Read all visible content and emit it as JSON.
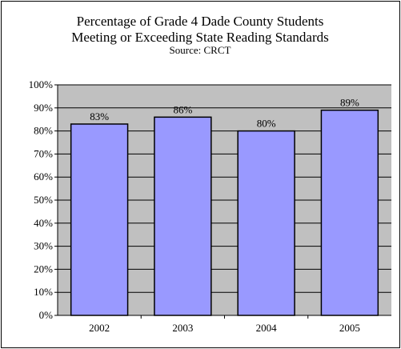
{
  "chart_data": {
    "type": "bar",
    "title": [
      "Percentage of Grade 4 Dade County Students",
      "Meeting or Exceeding State Reading Standards"
    ],
    "subtitle": "Source: CRCT",
    "categories": [
      "2002",
      "2003",
      "2004",
      "2005"
    ],
    "values": [
      83,
      86,
      80,
      89
    ],
    "data_labels": [
      "83%",
      "86%",
      "80%",
      "89%"
    ],
    "y_ticks": [
      "0%",
      "10%",
      "20%",
      "30%",
      "40%",
      "50%",
      "60%",
      "70%",
      "80%",
      "90%",
      "100%"
    ],
    "ylim": [
      0,
      100
    ],
    "xlabel": "",
    "ylabel": "",
    "grid": true,
    "legend": "none",
    "colors": {
      "bar_fill": "#9999ff",
      "bar_stroke": "#000000",
      "plot_background": "#c0c0c0",
      "gridline": "#000000"
    }
  }
}
